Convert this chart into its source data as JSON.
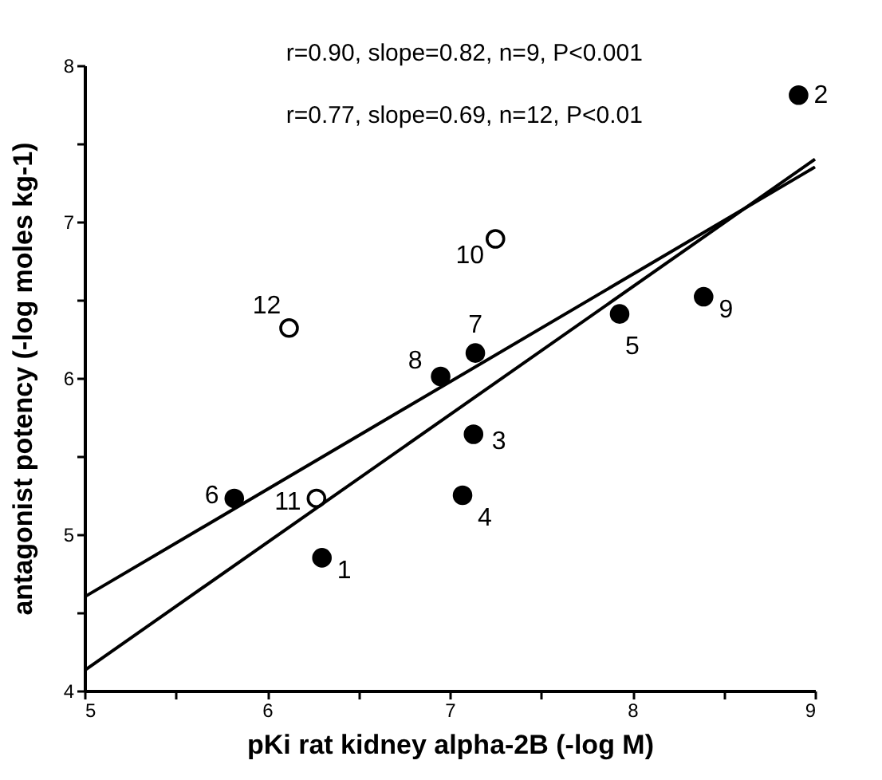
{
  "chart_data": {
    "type": "scatter",
    "xlabel": "pKi  rat  kidney  alpha-2B  (-log  M)",
    "ylabel": "antagonist  potency  (-log  moles  kg-1)",
    "xlim": [
      5,
      9
    ],
    "ylim": [
      4,
      8
    ],
    "xticks": [
      5,
      {
        "value": 5.5,
        "label": null
      },
      6,
      {
        "value": 6.5,
        "label": null
      },
      7,
      {
        "value": 7.5,
        "label": null
      },
      8,
      {
        "value": 8.5,
        "label": null
      },
      9
    ],
    "yticks": [
      4,
      {
        "value": 4.5,
        "label": null
      },
      5,
      {
        "value": 5.5,
        "label": null
      },
      6,
      {
        "value": 6.5,
        "label": null
      },
      7,
      {
        "value": 7.5,
        "label": null
      },
      8
    ],
    "grid": false,
    "series": [
      {
        "marker": "circle",
        "color": "#000000",
        "x": [
          6.3,
          8.91,
          7.13,
          7.07,
          7.93,
          5.82,
          7.14,
          6.95,
          8.39
        ],
        "values": [
          4.85,
          7.81,
          5.64,
          5.25,
          6.41,
          5.23,
          6.16,
          6.01,
          6.52
        ]
      },
      {
        "marker": "circle",
        "color": "#ffffff",
        "x": [
          7.25,
          6.27,
          6.12
        ],
        "values": [
          6.89,
          5.23,
          6.32
        ]
      },
      {
        "type": "line",
        "color": "#000000",
        "x": [
          5,
          9
        ],
        "values": [
          4.13,
          7.4
        ]
      },
      {
        "type": "line",
        "color": "#000000",
        "x": [
          5,
          9
        ],
        "values": [
          4.6,
          7.35
        ]
      }
    ],
    "annotations": [
      "r=0.90, slope=0.82, n=9, P<0.001",
      "r=0.77, slope=0.69, n=12, P<0.01",
      {
        "text": "1",
        "x": 6.3,
        "y": 4.85
      },
      {
        "text": "2",
        "x": 8.91,
        "y": 7.81
      },
      {
        "text": "3",
        "x": 7.13,
        "y": 5.64
      },
      {
        "text": "4",
        "x": 7.07,
        "y": 5.25
      },
      {
        "text": "5",
        "x": 7.93,
        "y": 6.41
      },
      {
        "text": "6",
        "x": 5.82,
        "y": 5.23
      },
      {
        "text": "7",
        "x": 7.14,
        "y": 6.16
      },
      {
        "text": "8",
        "x": 6.95,
        "y": 6.01
      },
      {
        "text": "9",
        "x": 8.39,
        "y": 6.52
      },
      {
        "text": "10",
        "x": 7.25,
        "y": 6.89
      },
      {
        "text": "11",
        "x": 6.27,
        "y": 5.23
      },
      {
        "text": "12",
        "x": 6.12,
        "y": 6.32
      }
    ]
  }
}
